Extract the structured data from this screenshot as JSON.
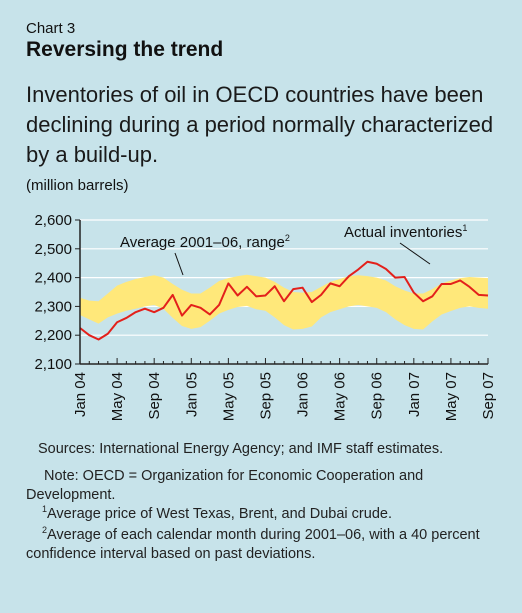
{
  "header": {
    "chart_label": "Chart 3",
    "title": "Reversing the trend",
    "subtitle": "Inventories of oil in OECD countries have been declining during a period normally characterized by a build-up.",
    "unit": "(million barrels)"
  },
  "chart_data": {
    "type": "line",
    "title": "Reversing the trend",
    "ylabel": "(million barrels)",
    "ylim": [
      2100,
      2600
    ],
    "yticks": [
      "2,100",
      "2,200",
      "2,300",
      "2,400",
      "2,500",
      "2,600"
    ],
    "xtick_labels": [
      "Jan 04",
      "May 04",
      "Sep 04",
      "Jan 05",
      "May 05",
      "Sep 05",
      "Jan 06",
      "May 06",
      "Sep 06",
      "Jan 07",
      "May 07",
      "Sep 07"
    ],
    "months": [
      "Jan 04",
      "Feb 04",
      "Mar 04",
      "Apr 04",
      "May 04",
      "Jun 04",
      "Jul 04",
      "Aug 04",
      "Sep 04",
      "Oct 04",
      "Nov 04",
      "Dec 04",
      "Jan 05",
      "Feb 05",
      "Mar 05",
      "Apr 05",
      "May 05",
      "Jun 05",
      "Jul 05",
      "Aug 05",
      "Sep 05",
      "Oct 05",
      "Nov 05",
      "Dec 05",
      "Jan 06",
      "Feb 06",
      "Mar 06",
      "Apr 06",
      "May 06",
      "Jun 06",
      "Jul 06",
      "Aug 06",
      "Sep 06",
      "Oct 06",
      "Nov 06",
      "Dec 06",
      "Jan 07",
      "Feb 07",
      "Mar 07",
      "Apr 07",
      "May 07",
      "Jun 07",
      "Jul 07",
      "Aug 07",
      "Sep 07"
    ],
    "series": [
      {
        "name": "Actual inventories",
        "values": [
          2225,
          2200,
          2185,
          2205,
          2245,
          2260,
          2280,
          2292,
          2280,
          2295,
          2340,
          2268,
          2305,
          2295,
          2272,
          2305,
          2380,
          2338,
          2368,
          2335,
          2338,
          2370,
          2318,
          2360,
          2365,
          2315,
          2340,
          2380,
          2370,
          2405,
          2428,
          2455,
          2448,
          2430,
          2400,
          2402,
          2348,
          2318,
          2335,
          2378,
          2378,
          2390,
          2368,
          2340,
          2338
        ]
      },
      {
        "name": "Average 2001–06, range",
        "band_low": [
          2270,
          2255,
          2240,
          2262,
          2275,
          2285,
          2292,
          2300,
          2305,
          2292,
          2260,
          2232,
          2222,
          2228,
          2250,
          2275,
          2288,
          2298,
          2302,
          2290,
          2285,
          2262,
          2235,
          2220,
          2222,
          2230,
          2262,
          2280,
          2290,
          2300,
          2305,
          2300,
          2295,
          2280,
          2255,
          2235,
          2222,
          2220,
          2248,
          2272,
          2284,
          2295,
          2300,
          2295,
          2292
        ],
        "band_high": [
          2330,
          2320,
          2318,
          2345,
          2372,
          2385,
          2395,
          2402,
          2408,
          2400,
          2378,
          2358,
          2345,
          2345,
          2365,
          2388,
          2398,
          2405,
          2410,
          2405,
          2400,
          2385,
          2365,
          2350,
          2348,
          2350,
          2368,
          2385,
          2395,
          2405,
          2408,
          2405,
          2400,
          2390,
          2370,
          2355,
          2345,
          2345,
          2360,
          2380,
          2390,
          2398,
          2402,
          2400,
          2398
        ]
      }
    ],
    "annotations": [
      {
        "text": "Average 2001–06, range",
        "sup": "2"
      },
      {
        "text": "Actual inventories",
        "sup": "1"
      }
    ],
    "colors": {
      "line": "#e3201b",
      "band": "#ffe87a",
      "axis": "#222222",
      "grid": "#ffffff",
      "plot_bg": "#c7e3ea"
    },
    "grid": true
  },
  "footnotes": {
    "sources": "Sources:   International Energy Agency; and IMF staff estimates.",
    "note": "Note: OECD = Organization for Economic Cooperation and Development.",
    "fn1_mark": "1",
    "fn1": "Average price of West Texas, Brent, and Dubai crude.",
    "fn2_mark": "2",
    "fn2": "Average of each calendar month during 2001–06, with a 40 percent confidence interval based on past deviations."
  }
}
